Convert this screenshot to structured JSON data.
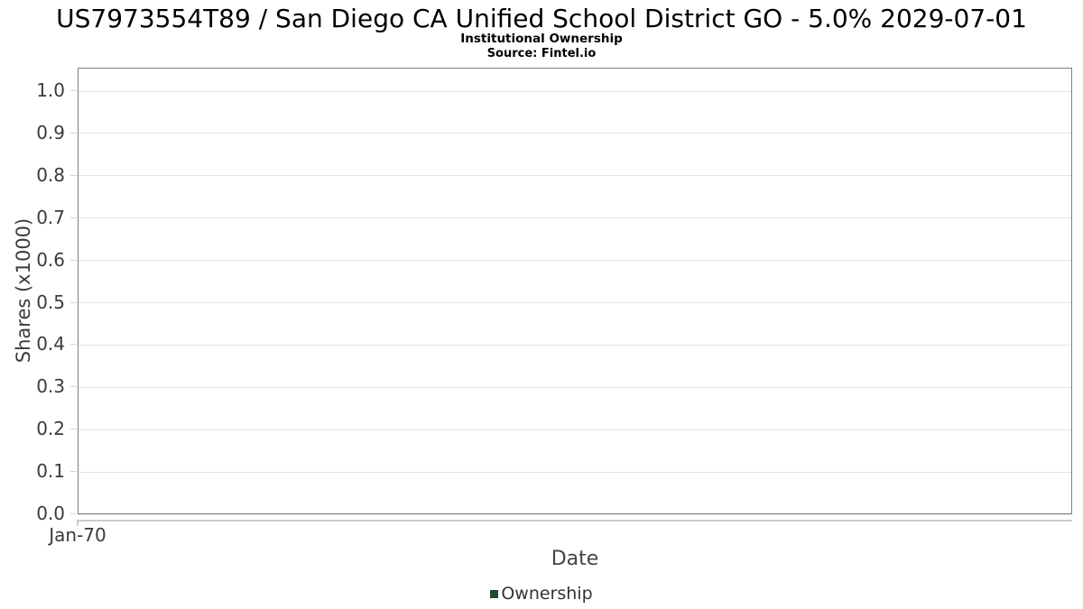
{
  "header": {
    "title": "US7973554T89 / San Diego CA Unified School District GO - 5.0% 2029-07-01",
    "subtitle": "Institutional Ownership",
    "source": "Source: Fintel.io"
  },
  "y_axis": {
    "label": "Shares (x1000)",
    "tick_labels": [
      "1.0",
      "0.9",
      "0.8",
      "0.7",
      "0.6",
      "0.5",
      "0.4",
      "0.3",
      "0.2",
      "0.1",
      "0.0"
    ]
  },
  "x_axis": {
    "label": "Date",
    "tick_labels": [
      "Jan-70"
    ]
  },
  "legend": {
    "items": [
      {
        "label": "Ownership",
        "color": "#1e4b2d"
      }
    ]
  },
  "colors": {
    "plot_border": "#7e7e7e",
    "gridline": "#e3e3e3",
    "axis_line": "#cbcbcb",
    "tick_text": "#3b3b3b",
    "title_text": "#000000",
    "series_green": "#1e4b2d"
  },
  "chart_data": {
    "type": "bar",
    "title": "US7973554T89 / San Diego CA Unified School District GO - 5.0% 2029-07-01",
    "subtitle": "Institutional Ownership",
    "source": "Source: Fintel.io",
    "xlabel": "Date",
    "ylabel": "Shares (x1000)",
    "categories": [
      "Jan-70"
    ],
    "series": [
      {
        "name": "Ownership",
        "color": "#1e4b2d",
        "values": []
      }
    ],
    "ylim": [
      0.0,
      1.055
    ],
    "yticks": [
      0.0,
      0.1,
      0.2,
      0.3,
      0.4,
      0.5,
      0.6,
      0.7,
      0.8,
      0.9,
      1.0
    ],
    "grid": "horizontal",
    "legend_position": "bottom-center",
    "plot_empty": true
  }
}
